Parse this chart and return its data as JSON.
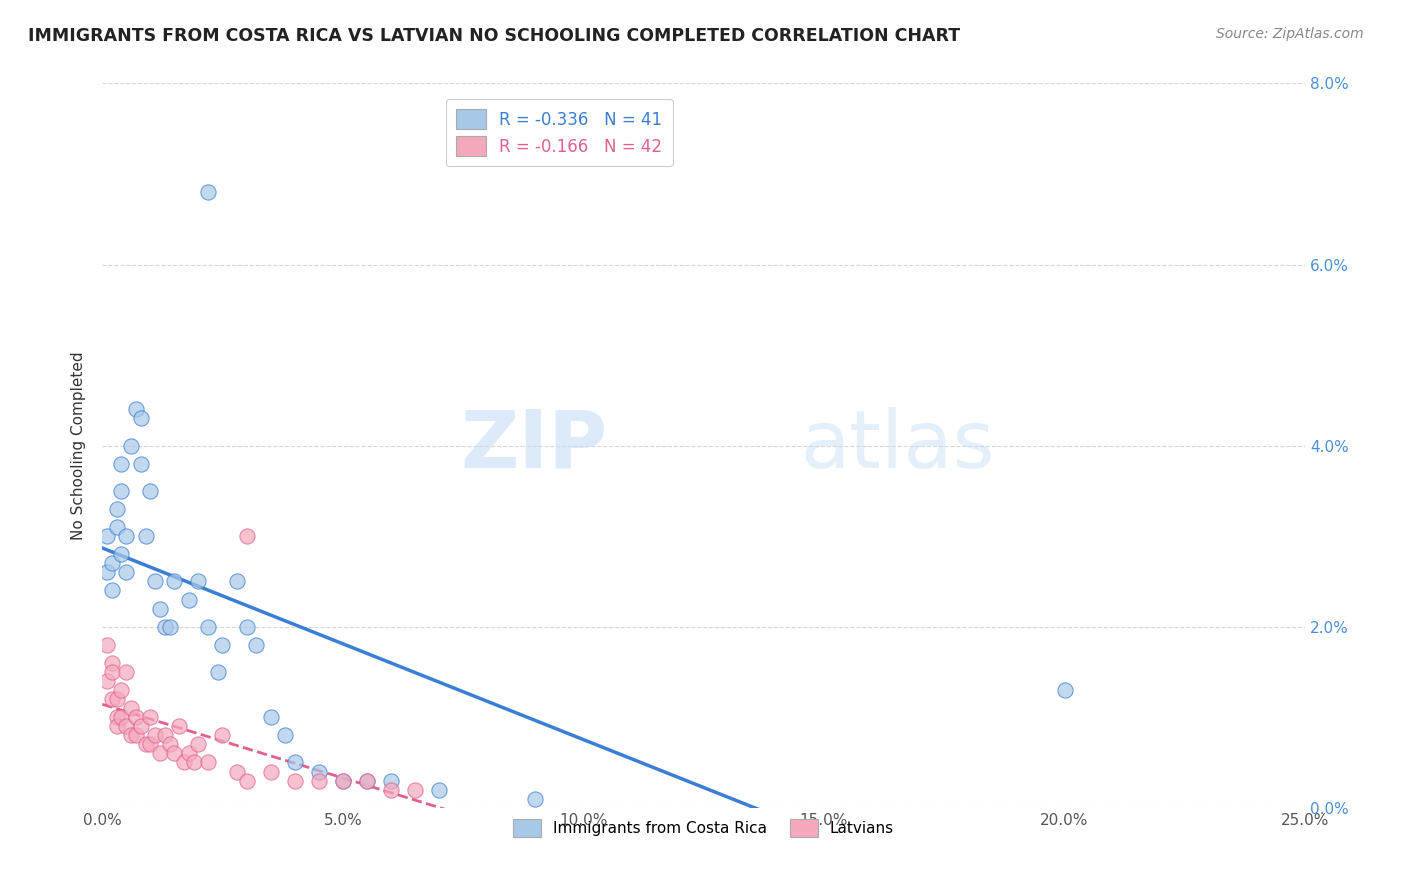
{
  "title": "IMMIGRANTS FROM COSTA RICA VS LATVIAN NO SCHOOLING COMPLETED CORRELATION CHART",
  "source": "Source: ZipAtlas.com",
  "ylabel": "No Schooling Completed",
  "x_min": 0.0,
  "x_max": 0.25,
  "y_min": 0.0,
  "y_max": 0.08,
  "x_ticks": [
    0.0,
    0.05,
    0.1,
    0.15,
    0.2,
    0.25
  ],
  "x_tick_labels": [
    "0.0%",
    "5.0%",
    "10.0%",
    "15.0%",
    "20.0%",
    "25.0%"
  ],
  "y_ticks": [
    0.0,
    0.02,
    0.04,
    0.06,
    0.08
  ],
  "y_tick_labels_right": [
    "0.0%",
    "2.0%",
    "4.0%",
    "6.0%",
    "8.0%"
  ],
  "blue_color": "#a8c8e8",
  "pink_color": "#f5a8bc",
  "blue_line_color": "#3a7fd5",
  "pink_line_color": "#e06090",
  "legend_blue_label": "R = -0.336   N = 41",
  "legend_pink_label": "R = -0.166   N = 42",
  "series1_label": "Immigrants from Costa Rica",
  "series2_label": "Latvians",
  "watermark_zip": "ZIP",
  "watermark_atlas": "atlas",
  "blue_scatter_x": [
    0.001,
    0.001,
    0.002,
    0.002,
    0.003,
    0.003,
    0.004,
    0.004,
    0.004,
    0.005,
    0.005,
    0.006,
    0.007,
    0.008,
    0.008,
    0.009,
    0.01,
    0.011,
    0.012,
    0.013,
    0.014,
    0.015,
    0.018,
    0.02,
    0.022,
    0.024,
    0.025,
    0.028,
    0.03,
    0.032,
    0.035,
    0.038,
    0.04,
    0.045,
    0.05,
    0.055,
    0.06,
    0.07,
    0.09,
    0.2,
    0.022
  ],
  "blue_scatter_y": [
    0.026,
    0.03,
    0.027,
    0.024,
    0.033,
    0.031,
    0.028,
    0.035,
    0.038,
    0.03,
    0.026,
    0.04,
    0.044,
    0.043,
    0.038,
    0.03,
    0.035,
    0.025,
    0.022,
    0.02,
    0.02,
    0.025,
    0.023,
    0.025,
    0.02,
    0.015,
    0.018,
    0.025,
    0.02,
    0.018,
    0.01,
    0.008,
    0.005,
    0.004,
    0.003,
    0.003,
    0.003,
    0.002,
    0.001,
    0.013,
    0.068
  ],
  "pink_scatter_x": [
    0.001,
    0.001,
    0.002,
    0.002,
    0.002,
    0.003,
    0.003,
    0.003,
    0.004,
    0.004,
    0.005,
    0.005,
    0.006,
    0.006,
    0.007,
    0.007,
    0.008,
    0.009,
    0.01,
    0.01,
    0.011,
    0.012,
    0.013,
    0.014,
    0.015,
    0.016,
    0.017,
    0.018,
    0.019,
    0.02,
    0.022,
    0.025,
    0.028,
    0.03,
    0.035,
    0.04,
    0.045,
    0.05,
    0.055,
    0.06,
    0.065,
    0.03
  ],
  "pink_scatter_y": [
    0.018,
    0.014,
    0.016,
    0.015,
    0.012,
    0.012,
    0.01,
    0.009,
    0.013,
    0.01,
    0.015,
    0.009,
    0.011,
    0.008,
    0.01,
    0.008,
    0.009,
    0.007,
    0.01,
    0.007,
    0.008,
    0.006,
    0.008,
    0.007,
    0.006,
    0.009,
    0.005,
    0.006,
    0.005,
    0.007,
    0.005,
    0.008,
    0.004,
    0.003,
    0.004,
    0.003,
    0.003,
    0.003,
    0.003,
    0.002,
    0.002,
    0.03
  ]
}
